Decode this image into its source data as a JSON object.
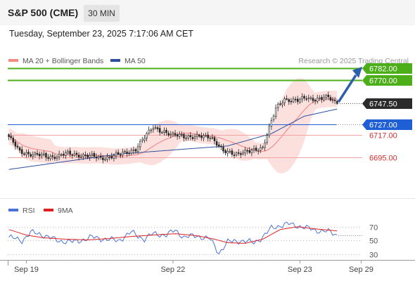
{
  "header": {
    "title": "S&P 500 (CME)",
    "timeframe": "30 MIN",
    "datetime": "Tuesday, September 23, 2025 7:17:06 AM CET"
  },
  "chart_data": [
    {
      "type": "candlestick",
      "panel": "price",
      "legend": [
        {
          "label": "MA 20 + Bollinger Bands",
          "color": "#f28b82"
        },
        {
          "label": "MA 50",
          "color": "#2d4f9e"
        }
      ],
      "watermark": "Research © 2025 Trading Central",
      "ylim": [
        6655,
        6795
      ],
      "price_levels": [
        {
          "value": 6782.0,
          "label": "6782.00",
          "style": "resistance",
          "color": "#4caf1a"
        },
        {
          "value": 6770.0,
          "label": "6770.00",
          "style": "resistance",
          "color": "#4caf1a"
        },
        {
          "value": 6747.5,
          "label": "6747.50",
          "style": "last",
          "color": "#222222"
        },
        {
          "value": 6727.0,
          "label": "6727.00",
          "style": "pivot",
          "color": "#1f5fd6"
        },
        {
          "value": 6717.0,
          "label": "6717.00",
          "style": "support",
          "color": "#e08080"
        },
        {
          "value": 6695.0,
          "label": "6695.00",
          "style": "support",
          "color": "#e08080"
        }
      ],
      "target_arrow": {
        "from": 6747.5,
        "to": 6782.0,
        "color": "#2d5ea8"
      },
      "key_points": {
        "x": [
          0,
          5,
          11,
          18,
          26,
          34,
          42,
          50,
          58,
          66,
          74,
          78,
          84,
          92,
          98,
          104,
          110,
          116,
          122,
          126,
          132,
          136,
          140,
          146,
          150
        ],
        "close": [
          6715,
          6700,
          6698,
          6695,
          6698,
          6697,
          6694,
          6697,
          6703,
          6725,
          6716,
          6717,
          6714,
          6716,
          6700,
          6699,
          6700,
          6705,
          6742,
          6752,
          6750,
          6753,
          6752,
          6753,
          6747.5
        ]
      },
      "ma50": {
        "x": [
          0,
          50,
          100,
          120,
          135,
          150
        ],
        "value": [
          6683,
          6698,
          6706,
          6718,
          6735,
          6742
        ]
      },
      "x_ticks": [
        {
          "label": "Sep 19",
          "pos": 8
        },
        {
          "label": "Sep 22",
          "pos": 75
        },
        {
          "label": "Sep 23",
          "pos": 133
        },
        {
          "label": "Sep 29",
          "pos": 161
        }
      ]
    },
    {
      "type": "line",
      "panel": "indicator",
      "legend": [
        {
          "label": "RSI",
          "color": "#4a72d8"
        },
        {
          "label": "9MA",
          "color": "#e02020"
        }
      ],
      "ylim": [
        22,
        80
      ],
      "y_ticks": [
        70,
        50,
        30
      ],
      "series": [
        {
          "name": "RSI",
          "x": [
            0,
            6,
            10,
            16,
            22,
            30,
            38,
            44,
            50,
            56,
            62,
            66,
            72,
            76,
            80,
            86,
            92,
            96,
            100,
            106,
            112,
            116,
            120,
            124,
            128,
            134,
            140,
            146,
            150
          ],
          "values": [
            55,
            50,
            62,
            58,
            50,
            48,
            55,
            52,
            50,
            62,
            52,
            60,
            58,
            65,
            55,
            57,
            52,
            32,
            48,
            50,
            47,
            55,
            68,
            72,
            74,
            70,
            65,
            63,
            58
          ]
        },
        {
          "name": "9MA",
          "x": [
            0,
            8,
            16,
            26,
            36,
            46,
            56,
            66,
            76,
            86,
            94,
            100,
            108,
            116,
            124,
            132,
            140,
            150
          ],
          "values": [
            66,
            58,
            54,
            52,
            51,
            53,
            56,
            58,
            60,
            57,
            52,
            47,
            46,
            52,
            66,
            70,
            67,
            64
          ]
        }
      ]
    }
  ]
}
